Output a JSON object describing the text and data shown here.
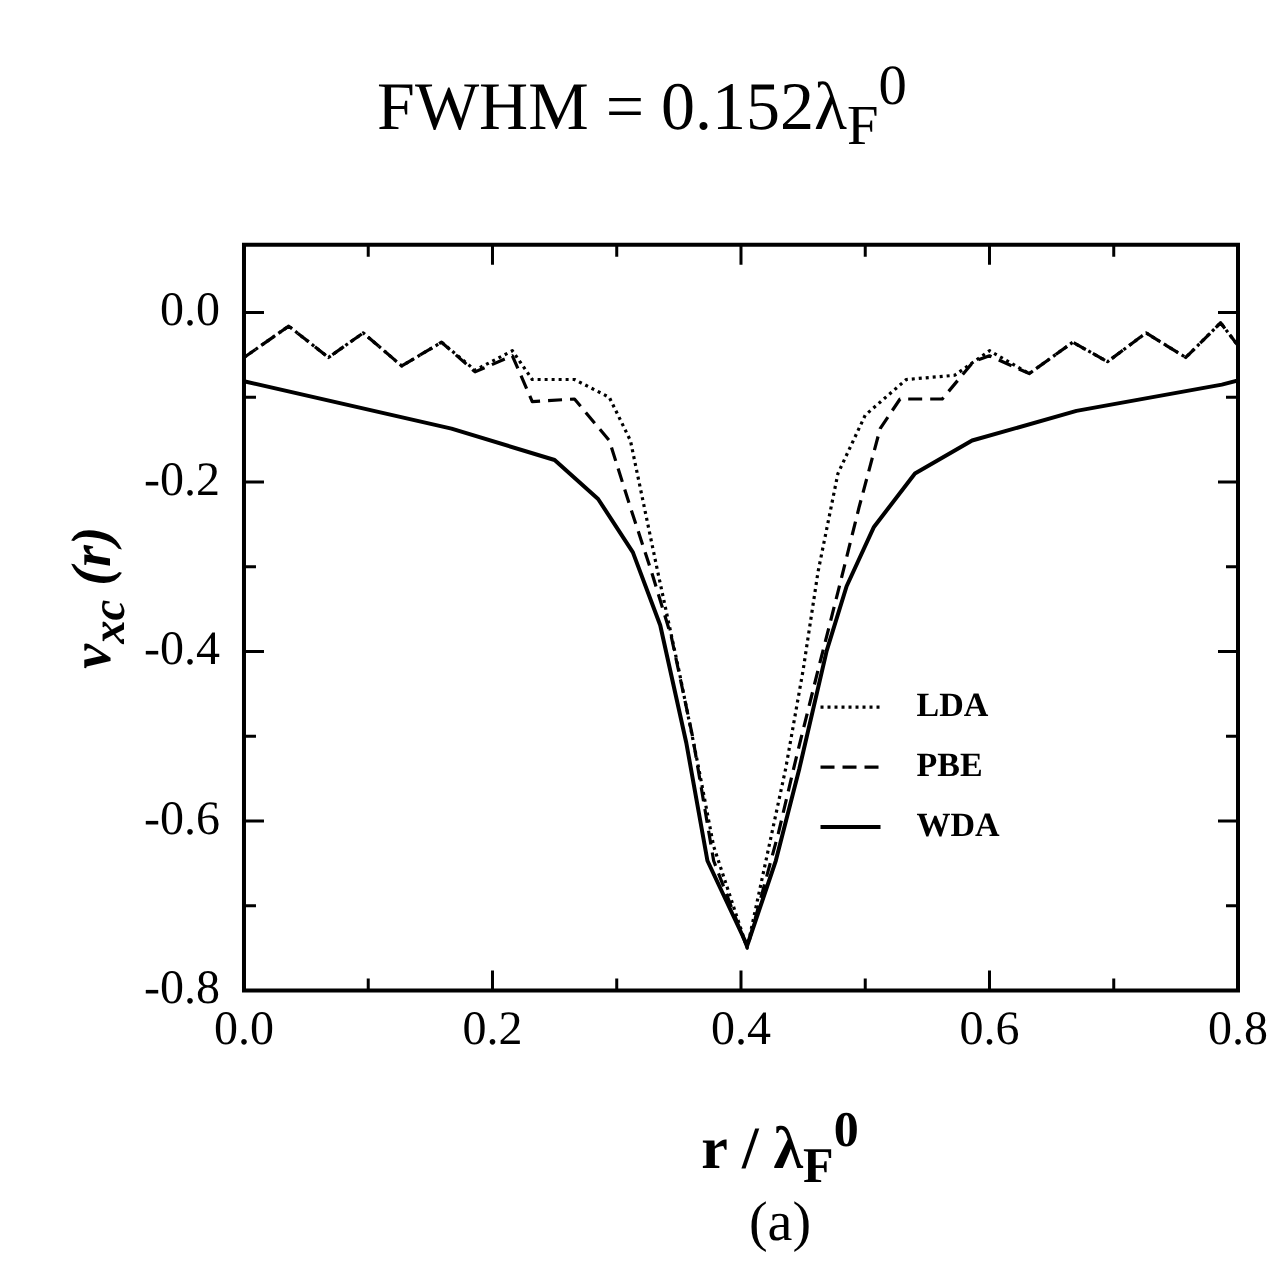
{
  "chart_data": {
    "type": "line",
    "title": "FWHM = 0.152λ$_{F}$$^{0}$",
    "xlabel": "r / λ$_{F}$$^{0}$",
    "ylabel": "v$_{xc}$ (r)",
    "annotations": [
      "(a)"
    ],
    "xlim": [
      0,
      0.8
    ],
    "xticks": [
      {
        "value": 0,
        "label": "0.0"
      },
      {
        "value": 0.1,
        "label": null
      },
      0.2,
      {
        "value": 0.3,
        "label": null
      },
      0.4,
      {
        "value": 0.5,
        "label": null
      },
      0.6,
      {
        "value": 0.7,
        "label": null
      },
      0.8
    ],
    "ylim": [
      -0.8,
      0.08
    ],
    "yticks": [
      -0.8,
      {
        "value": -0.7,
        "label": null
      },
      -0.6,
      {
        "value": -0.5,
        "label": null
      },
      -0.4,
      {
        "value": -0.3,
        "label": null
      },
      -0.2,
      {
        "value": -0.1,
        "label": null
      },
      {
        "value": 0,
        "label": "0.0"
      }
    ],
    "grid": false,
    "legend": "bottom right",
    "marker": "none",
    "series": [
      {
        "name": "LDA",
        "color": "#000000",
        "line_style": "dotted",
        "x": [
          0,
          0.036,
          0.068,
          0.096,
          0.127,
          0.159,
          0.186,
          0.216,
          0.232,
          0.266,
          0.294,
          0.311,
          0.333,
          0.35,
          0.366,
          0.378,
          0.405,
          0.436,
          0.45,
          0.462,
          0.478,
          0.5,
          0.533,
          0.572,
          0.6,
          0.632,
          0.667,
          0.695,
          0.726,
          0.758,
          0.786,
          0.8
        ],
        "values": [
          -0.053,
          -0.016,
          -0.053,
          -0.024,
          -0.063,
          -0.035,
          -0.068,
          -0.045,
          -0.079,
          -0.079,
          -0.1,
          -0.151,
          -0.306,
          -0.422,
          -0.538,
          -0.63,
          -0.75,
          -0.538,
          -0.422,
          -0.306,
          -0.19,
          -0.121,
          -0.079,
          -0.074,
          -0.045,
          -0.072,
          -0.035,
          -0.058,
          -0.024,
          -0.053,
          -0.012,
          -0.039
        ]
      },
      {
        "name": "PBE",
        "color": "#000000",
        "line_style": "dashed",
        "x": [
          0,
          0.036,
          0.068,
          0.096,
          0.127,
          0.159,
          0.186,
          0.216,
          0.232,
          0.266,
          0.294,
          0.311,
          0.328,
          0.344,
          0.361,
          0.378,
          0.405,
          0.43,
          0.445,
          0.462,
          0.478,
          0.495,
          0.512,
          0.528,
          0.562,
          0.587,
          0.6,
          0.632,
          0.667,
          0.695,
          0.726,
          0.758,
          0.786,
          0.8
        ],
        "values": [
          -0.053,
          -0.016,
          -0.053,
          -0.024,
          -0.063,
          -0.035,
          -0.07,
          -0.051,
          -0.105,
          -0.102,
          -0.151,
          -0.23,
          -0.306,
          -0.383,
          -0.5,
          -0.647,
          -0.75,
          -0.615,
          -0.522,
          -0.422,
          -0.33,
          -0.23,
          -0.137,
          -0.102,
          -0.102,
          -0.058,
          -0.051,
          -0.072,
          -0.035,
          -0.058,
          -0.024,
          -0.053,
          -0.012,
          -0.039
        ]
      },
      {
        "name": "WDA",
        "color": "#000000",
        "line_style": "solid",
        "x": [
          0,
          0.167,
          0.25,
          0.285,
          0.313,
          0.335,
          0.356,
          0.373,
          0.405,
          0.428,
          0.447,
          0.469,
          0.485,
          0.507,
          0.54,
          0.586,
          0.67,
          0.787,
          0.8
        ],
        "values": [
          -0.081,
          -0.137,
          -0.174,
          -0.22,
          -0.283,
          -0.369,
          -0.508,
          -0.647,
          -0.747,
          -0.647,
          -0.538,
          -0.399,
          -0.323,
          -0.253,
          -0.19,
          -0.151,
          -0.116,
          -0.085,
          -0.08
        ]
      }
    ]
  }
}
